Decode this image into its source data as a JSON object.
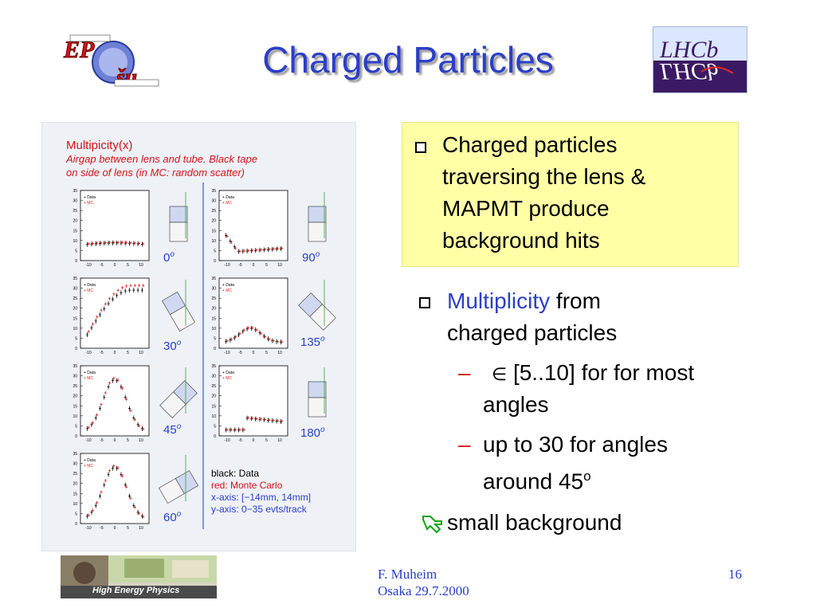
{
  "title": "Charged Particles",
  "logos": {
    "left": {
      "name": "ep-logo"
    },
    "right": {
      "text": "LHCb"
    }
  },
  "figure": {
    "heading": "Multipicity(x)",
    "caption_lines": [
      "Airgap between lens and tube.  Black tape",
      "on side of lens (in MC: random scatter)"
    ],
    "angle_labels": [
      "0",
      "90",
      "30",
      "135",
      "45",
      "180",
      "60"
    ],
    "degree_sup": "o",
    "y_ticks": [
      "35",
      "30",
      "25",
      "20",
      "15",
      "10",
      "5",
      "0"
    ],
    "x_ticks": [
      "-10",
      "-5",
      "0",
      "5",
      "10"
    ],
    "legend": {
      "black": "black:  Data",
      "red": "red:  Monte Carlo",
      "xaxis": "x-axis:  [−14mm, 14mm]",
      "yaxis": "y-axis:  0−35 evts/track"
    },
    "colors": {
      "data": "#000000",
      "mc": "#e0201c",
      "divider": "#3a5bd0"
    }
  },
  "callout": {
    "lines": [
      "Charged particles",
      "traversing the lens &",
      "MAPMT produce",
      "background hits"
    ]
  },
  "bullets": {
    "b2_highlight": "Multiplicity",
    "b2_rest": " from",
    "b2_line2": "charged particles",
    "sub1_dash": "–",
    "sub1_symbol": "∈",
    "sub1_text": " [5..10] for for most",
    "sub1_line2": "angles",
    "sub2_dash": "–",
    "sub2_text": "up to 30 for angles",
    "sub2_line2": "around 45",
    "sub2_sup": "o",
    "b3_text": "small background"
  },
  "footer": {
    "author": "F. Muheim",
    "place_date": "Osaka 29.7.2000",
    "page": "16",
    "banner_text": "High Energy Physics"
  }
}
